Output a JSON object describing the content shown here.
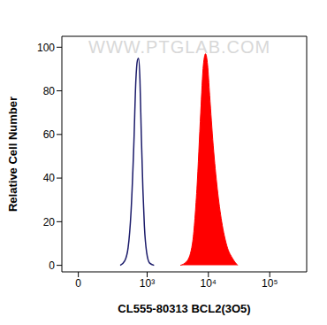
{
  "chart_data": {
    "type": "histogram",
    "xlabel": "CL555-80313 BCL2(3O5)",
    "ylabel": "Relative Cell Number",
    "annotations": [
      "WWW.PTGLAB.COM"
    ],
    "log": "x",
    "grid": false,
    "xlim": [
      -100,
      400000
    ],
    "xticks": [
      0,
      {
        "value": 1000,
        "label": "10³"
      },
      {
        "value": 10000,
        "label": "10⁴"
      },
      {
        "value": 100000,
        "label": "10⁵"
      }
    ],
    "ylim": [
      -3,
      105
    ],
    "yticks": [
      0,
      20,
      40,
      60,
      80,
      100
    ],
    "series": [
      {
        "type": "line",
        "color": "#1c1c6b",
        "x": [
          350,
          420,
          480,
          540,
          600,
          650,
          690,
          720,
          760,
          800,
          850,
          900,
          980,
          1100,
          1300
        ],
        "values": [
          0,
          2,
          8,
          25,
          55,
          85,
          94,
          95,
          85,
          60,
          35,
          18,
          6,
          1,
          0
        ]
      },
      {
        "type": "area",
        "color": "#ff0000",
        "x": [
          3500,
          4500,
          5500,
          6500,
          7500,
          8300,
          9000,
          9700,
          10500,
          12000,
          14000,
          16500,
          20000,
          25000,
          30000
        ],
        "values": [
          0,
          2,
          10,
          35,
          70,
          92,
          97,
          92,
          78,
          55,
          35,
          20,
          9,
          3,
          0
        ]
      }
    ]
  }
}
